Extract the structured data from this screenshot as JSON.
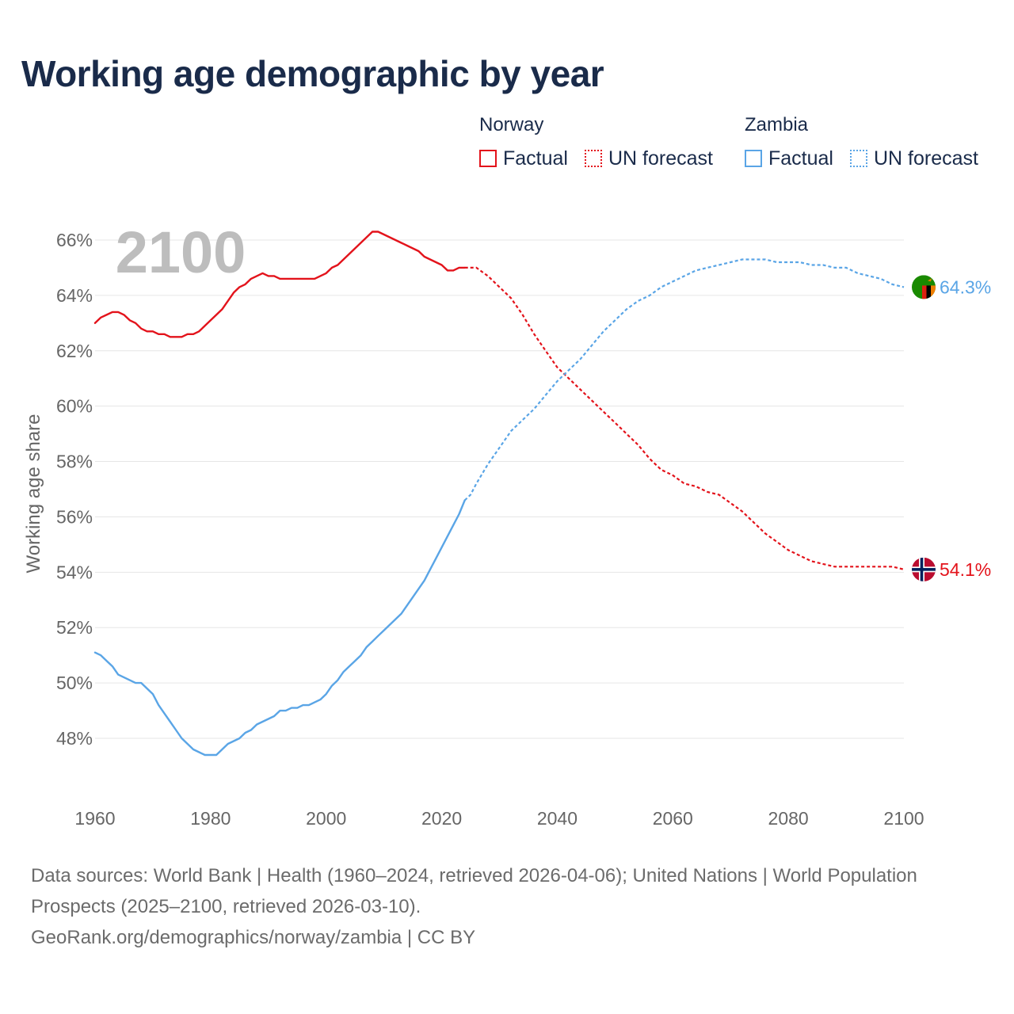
{
  "title": "Working age demographic by year",
  "legend": {
    "norway": {
      "name": "Norway",
      "factual": "Factual",
      "forecast": "UN forecast"
    },
    "zambia": {
      "name": "Zambia",
      "factual": "Factual",
      "forecast": "UN forecast"
    }
  },
  "colors": {
    "norway": "#e3131b",
    "zambia": "#5aa5e6",
    "grid": "#e6e6e6",
    "year_watermark": "#bdbdbd"
  },
  "sources": {
    "line1": "Data sources: World Bank | Health (1960–2024, retrieved 2026-04-06); United Nations | World Population Prospects (2025–2100, retrieved 2026-03-10).",
    "line2": "GeoRank.org/demographics/norway/zambia | CC BY"
  },
  "chart_data": {
    "type": "line",
    "title": "Working age demographic by year",
    "ylabel": "Working age share",
    "xlabel": "",
    "current_year_label": "2100",
    "xlim": [
      1960,
      2100
    ],
    "ylim": [
      46,
      66.8
    ],
    "x_ticks": [
      1960,
      1980,
      2000,
      2020,
      2040,
      2060,
      2080,
      2100
    ],
    "y_ticks": [
      48,
      50,
      52,
      54,
      56,
      58,
      60,
      62,
      64,
      66
    ],
    "y_tick_labels": [
      "48%",
      "50%",
      "52%",
      "54%",
      "56%",
      "58%",
      "60%",
      "62%",
      "64%",
      "66%"
    ],
    "factual_end_year": 2024,
    "series": [
      {
        "name": "Norway",
        "color": "#e3131b",
        "end_label": "54.1%",
        "flag": "norway-flag",
        "points": [
          [
            1960,
            63.0
          ],
          [
            1961,
            63.2
          ],
          [
            1962,
            63.3
          ],
          [
            1963,
            63.4
          ],
          [
            1964,
            63.4
          ],
          [
            1965,
            63.3
          ],
          [
            1966,
            63.1
          ],
          [
            1967,
            63.0
          ],
          [
            1968,
            62.8
          ],
          [
            1969,
            62.7
          ],
          [
            1970,
            62.7
          ],
          [
            1971,
            62.6
          ],
          [
            1972,
            62.6
          ],
          [
            1973,
            62.5
          ],
          [
            1974,
            62.5
          ],
          [
            1975,
            62.5
          ],
          [
            1976,
            62.6
          ],
          [
            1977,
            62.6
          ],
          [
            1978,
            62.7
          ],
          [
            1979,
            62.9
          ],
          [
            1980,
            63.1
          ],
          [
            1981,
            63.3
          ],
          [
            1982,
            63.5
          ],
          [
            1983,
            63.8
          ],
          [
            1984,
            64.1
          ],
          [
            1985,
            64.3
          ],
          [
            1986,
            64.4
          ],
          [
            1987,
            64.6
          ],
          [
            1988,
            64.7
          ],
          [
            1989,
            64.8
          ],
          [
            1990,
            64.7
          ],
          [
            1991,
            64.7
          ],
          [
            1992,
            64.6
          ],
          [
            1993,
            64.6
          ],
          [
            1994,
            64.6
          ],
          [
            1995,
            64.6
          ],
          [
            1996,
            64.6
          ],
          [
            1997,
            64.6
          ],
          [
            1998,
            64.6
          ],
          [
            1999,
            64.7
          ],
          [
            2000,
            64.8
          ],
          [
            2001,
            65.0
          ],
          [
            2002,
            65.1
          ],
          [
            2003,
            65.3
          ],
          [
            2004,
            65.5
          ],
          [
            2005,
            65.7
          ],
          [
            2006,
            65.9
          ],
          [
            2007,
            66.1
          ],
          [
            2008,
            66.3
          ],
          [
            2009,
            66.3
          ],
          [
            2010,
            66.2
          ],
          [
            2011,
            66.1
          ],
          [
            2012,
            66.0
          ],
          [
            2013,
            65.9
          ],
          [
            2014,
            65.8
          ],
          [
            2015,
            65.7
          ],
          [
            2016,
            65.6
          ],
          [
            2017,
            65.4
          ],
          [
            2018,
            65.3
          ],
          [
            2019,
            65.2
          ],
          [
            2020,
            65.1
          ],
          [
            2021,
            64.9
          ],
          [
            2022,
            64.9
          ],
          [
            2023,
            65.0
          ],
          [
            2024,
            65.0
          ],
          [
            2025,
            65.0
          ],
          [
            2026,
            65.0
          ],
          [
            2028,
            64.7
          ],
          [
            2030,
            64.3
          ],
          [
            2032,
            63.9
          ],
          [
            2034,
            63.3
          ],
          [
            2036,
            62.6
          ],
          [
            2038,
            62.0
          ],
          [
            2040,
            61.4
          ],
          [
            2042,
            61.0
          ],
          [
            2044,
            60.6
          ],
          [
            2046,
            60.2
          ],
          [
            2048,
            59.8
          ],
          [
            2050,
            59.4
          ],
          [
            2052,
            59.0
          ],
          [
            2054,
            58.6
          ],
          [
            2056,
            58.1
          ],
          [
            2058,
            57.7
          ],
          [
            2060,
            57.5
          ],
          [
            2062,
            57.2
          ],
          [
            2064,
            57.1
          ],
          [
            2066,
            56.9
          ],
          [
            2068,
            56.8
          ],
          [
            2070,
            56.5
          ],
          [
            2072,
            56.2
          ],
          [
            2074,
            55.8
          ],
          [
            2076,
            55.4
          ],
          [
            2078,
            55.1
          ],
          [
            2080,
            54.8
          ],
          [
            2082,
            54.6
          ],
          [
            2084,
            54.4
          ],
          [
            2086,
            54.3
          ],
          [
            2088,
            54.2
          ],
          [
            2090,
            54.2
          ],
          [
            2092,
            54.2
          ],
          [
            2094,
            54.2
          ],
          [
            2096,
            54.2
          ],
          [
            2098,
            54.2
          ],
          [
            2100,
            54.1
          ]
        ]
      },
      {
        "name": "Zambia",
        "color": "#5aa5e6",
        "end_label": "64.3%",
        "flag": "zambia-flag",
        "points": [
          [
            1960,
            51.1
          ],
          [
            1961,
            51.0
          ],
          [
            1962,
            50.8
          ],
          [
            1963,
            50.6
          ],
          [
            1964,
            50.3
          ],
          [
            1965,
            50.2
          ],
          [
            1966,
            50.1
          ],
          [
            1967,
            50.0
          ],
          [
            1968,
            50.0
          ],
          [
            1969,
            49.8
          ],
          [
            1970,
            49.6
          ],
          [
            1971,
            49.2
          ],
          [
            1972,
            48.9
          ],
          [
            1973,
            48.6
          ],
          [
            1974,
            48.3
          ],
          [
            1975,
            48.0
          ],
          [
            1976,
            47.8
          ],
          [
            1977,
            47.6
          ],
          [
            1978,
            47.5
          ],
          [
            1979,
            47.4
          ],
          [
            1980,
            47.4
          ],
          [
            1981,
            47.4
          ],
          [
            1982,
            47.6
          ],
          [
            1983,
            47.8
          ],
          [
            1984,
            47.9
          ],
          [
            1985,
            48.0
          ],
          [
            1986,
            48.2
          ],
          [
            1987,
            48.3
          ],
          [
            1988,
            48.5
          ],
          [
            1989,
            48.6
          ],
          [
            1990,
            48.7
          ],
          [
            1991,
            48.8
          ],
          [
            1992,
            49.0
          ],
          [
            1993,
            49.0
          ],
          [
            1994,
            49.1
          ],
          [
            1995,
            49.1
          ],
          [
            1996,
            49.2
          ],
          [
            1997,
            49.2
          ],
          [
            1998,
            49.3
          ],
          [
            1999,
            49.4
          ],
          [
            2000,
            49.6
          ],
          [
            2001,
            49.9
          ],
          [
            2002,
            50.1
          ],
          [
            2003,
            50.4
          ],
          [
            2004,
            50.6
          ],
          [
            2005,
            50.8
          ],
          [
            2006,
            51.0
          ],
          [
            2007,
            51.3
          ],
          [
            2008,
            51.5
          ],
          [
            2009,
            51.7
          ],
          [
            2010,
            51.9
          ],
          [
            2011,
            52.1
          ],
          [
            2012,
            52.3
          ],
          [
            2013,
            52.5
          ],
          [
            2014,
            52.8
          ],
          [
            2015,
            53.1
          ],
          [
            2016,
            53.4
          ],
          [
            2017,
            53.7
          ],
          [
            2018,
            54.1
          ],
          [
            2019,
            54.5
          ],
          [
            2020,
            54.9
          ],
          [
            2021,
            55.3
          ],
          [
            2022,
            55.7
          ],
          [
            2023,
            56.1
          ],
          [
            2024,
            56.6
          ],
          [
            2025,
            56.8
          ],
          [
            2026,
            57.2
          ],
          [
            2028,
            57.9
          ],
          [
            2030,
            58.5
          ],
          [
            2032,
            59.1
          ],
          [
            2034,
            59.5
          ],
          [
            2036,
            59.9
          ],
          [
            2038,
            60.4
          ],
          [
            2040,
            60.9
          ],
          [
            2042,
            61.3
          ],
          [
            2044,
            61.7
          ],
          [
            2046,
            62.2
          ],
          [
            2048,
            62.7
          ],
          [
            2050,
            63.1
          ],
          [
            2052,
            63.5
          ],
          [
            2054,
            63.8
          ],
          [
            2056,
            64.0
          ],
          [
            2058,
            64.3
          ],
          [
            2060,
            64.5
          ],
          [
            2062,
            64.7
          ],
          [
            2064,
            64.9
          ],
          [
            2066,
            65.0
          ],
          [
            2068,
            65.1
          ],
          [
            2070,
            65.2
          ],
          [
            2072,
            65.3
          ],
          [
            2074,
            65.3
          ],
          [
            2076,
            65.3
          ],
          [
            2078,
            65.2
          ],
          [
            2080,
            65.2
          ],
          [
            2082,
            65.2
          ],
          [
            2084,
            65.1
          ],
          [
            2086,
            65.1
          ],
          [
            2088,
            65.0
          ],
          [
            2090,
            65.0
          ],
          [
            2092,
            64.8
          ],
          [
            2094,
            64.7
          ],
          [
            2096,
            64.6
          ],
          [
            2098,
            64.4
          ],
          [
            2100,
            64.3
          ]
        ]
      }
    ]
  }
}
